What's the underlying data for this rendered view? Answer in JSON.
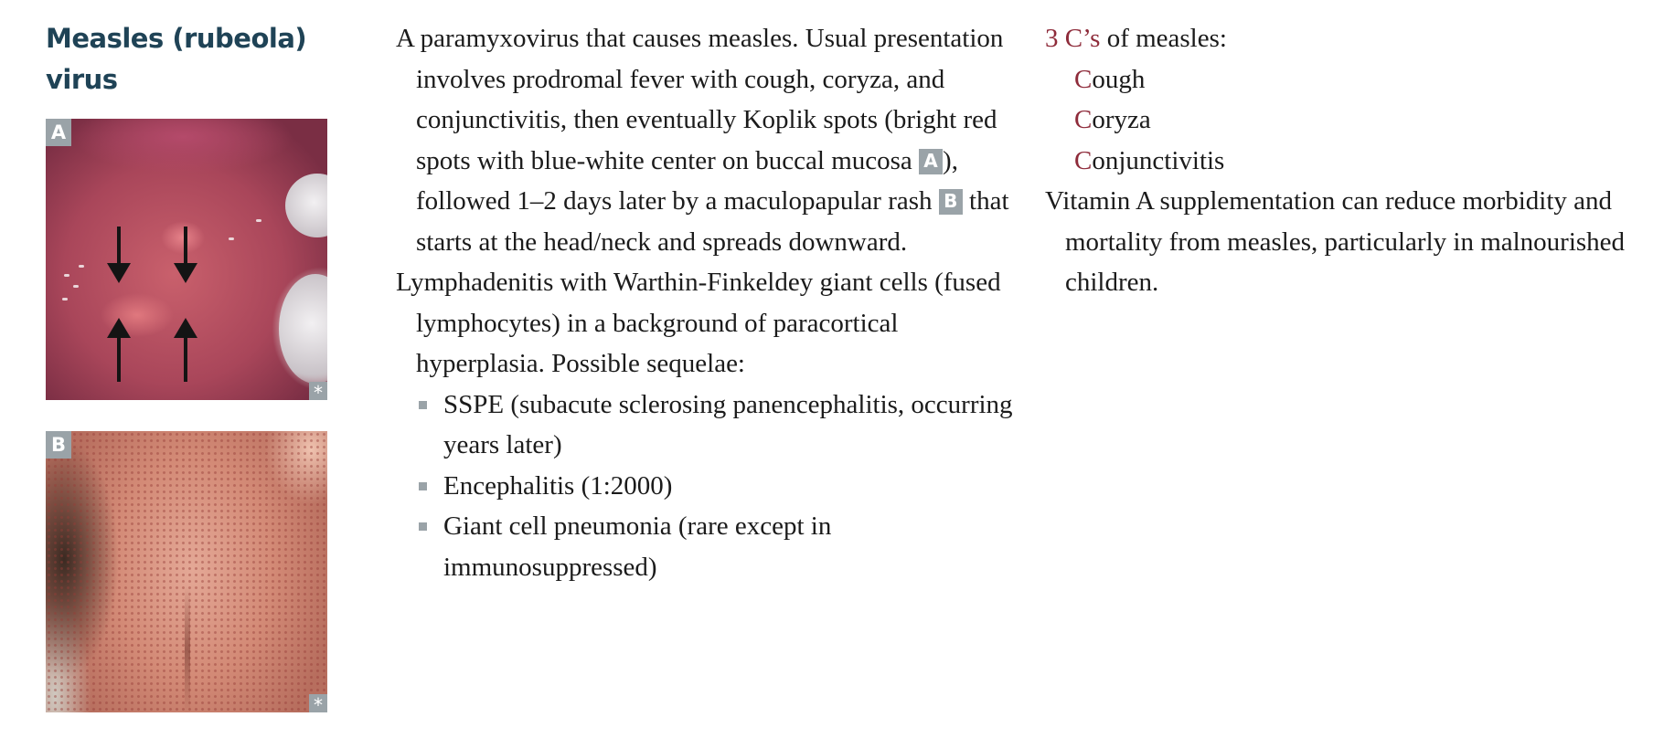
{
  "title": {
    "line1": "Measles (rubeola)",
    "line2": "virus"
  },
  "figures": [
    {
      "label": "A",
      "marker": "*"
    },
    {
      "label": "B",
      "marker": "*"
    }
  ],
  "middle": {
    "para1": {
      "part1": "A paramyxovirus that causes measles. Usual presentation involves prodromal fever with cough, coryza, and conjunctivitis, then eventually Koplik spots (bright red spots with blue-white center on buccal mucosa ",
      "ref1": "A",
      "part2": "), followed 1–2 days later by a maculopapular rash ",
      "ref2": "B",
      "part3": " that starts at the head/neck and spreads downward."
    },
    "para2": "Lymphadenitis with Warthin-Finkeldey giant cells (fused lymphocytes) in a background of paracortical hyperplasia. Possible sequelae:",
    "bullets": [
      "SSPE (subacute sclerosing panencephalitis, occurring years later)",
      "Encephalitis (1:2000)",
      "Giant cell pneumonia (rare except in immunosuppressed)"
    ]
  },
  "right": {
    "heading_accent": "3 C’s",
    "heading_rest": " of measles:",
    "c_items": [
      {
        "initial": "C",
        "rest": "ough"
      },
      {
        "initial": "C",
        "rest": "oryza"
      },
      {
        "initial": "C",
        "rest": "onjunctivitis"
      }
    ],
    "vitamin": "Vitamin A supplementation can reduce morbidity and mortality from measles, particularly in malnourished children."
  },
  "colors": {
    "title": "#1f4356",
    "accent": "#8e2b3a",
    "label_bg": "#9aa3a8"
  }
}
